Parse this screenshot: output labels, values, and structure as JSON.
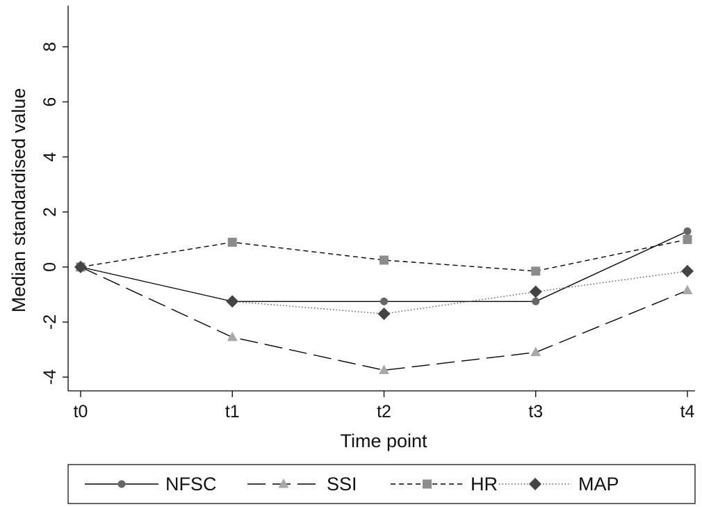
{
  "chart_data": {
    "type": "line",
    "title": "",
    "xlabel": "Time point",
    "ylabel": "Median standardised value",
    "categories": [
      "t0",
      "t1",
      "t2",
      "t3",
      "t4"
    ],
    "yticks": [
      "-4",
      "-2",
      "0",
      "2",
      "4",
      "6",
      "8"
    ],
    "ylim": [
      -4.5,
      9.5
    ],
    "grid": false,
    "legend_position": "bottom",
    "series": [
      {
        "name": "NFSC",
        "marker": "circle",
        "dash": "solid",
        "color": "#666666",
        "line_color": "#000000",
        "values": [
          0,
          -1.25,
          -1.25,
          -1.25,
          1.3
        ]
      },
      {
        "name": "SSI",
        "marker": "triangle",
        "dash": "longdash",
        "color": "#a8a8a8",
        "line_color": "#000000",
        "values": [
          0,
          -2.55,
          -3.75,
          -3.1,
          -0.85
        ]
      },
      {
        "name": "HR",
        "marker": "square",
        "dash": "shortdash",
        "color": "#8c8c8c",
        "line_color": "#000000",
        "values": [
          0,
          0.9,
          0.25,
          -0.15,
          1.0
        ]
      },
      {
        "name": "MAP",
        "marker": "diamond",
        "dash": "dot",
        "color": "#444444",
        "line_color": "#555555",
        "values": [
          0,
          -1.25,
          -1.7,
          -0.9,
          -0.15
        ]
      }
    ]
  }
}
